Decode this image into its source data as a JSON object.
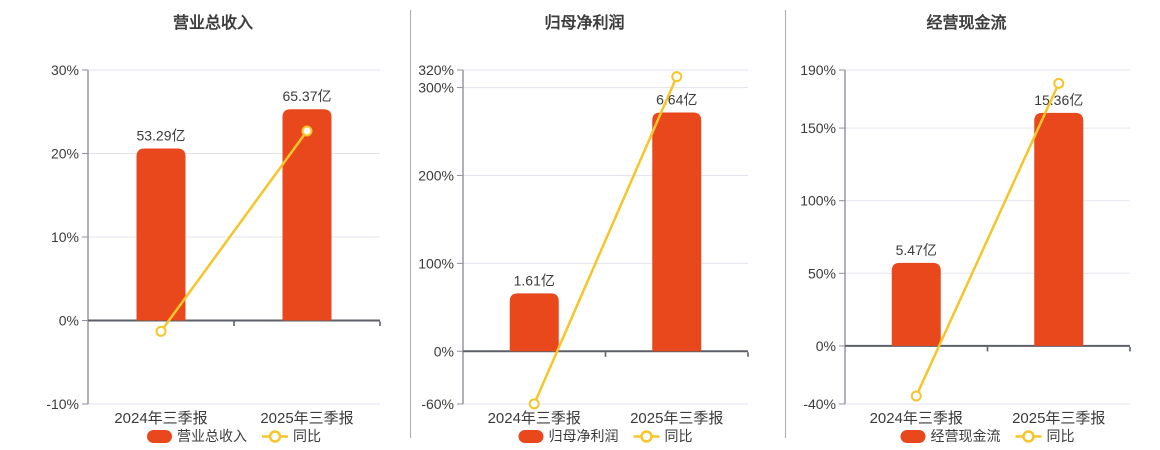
{
  "page": {
    "background": "#ffffff"
  },
  "colors": {
    "bar": "#e8481c",
    "line": "#f5c52b",
    "marker_fill": "#ffffff",
    "grid": "#e2e5ef",
    "zero_axis": "#5d5f68",
    "axis": "#90919a",
    "text": "#3b3b3b",
    "title": "#3d3d3d",
    "divider": "#aaabb2"
  },
  "chart_data": [
    {
      "type": "combo-bar-line",
      "title": "营业总收入",
      "categories": [
        "2024年三季报",
        "2025年三季报"
      ],
      "series": [
        {
          "name": "营业总收入",
          "type": "bar",
          "unit": "亿",
          "values": [
            53.29,
            65.37
          ],
          "labels": [
            "53.29亿",
            "65.37亿"
          ]
        },
        {
          "name": "同比",
          "type": "line",
          "unit": "%",
          "values": [
            -1.3,
            22.7
          ]
        }
      ],
      "y_axis": {
        "unit": "%",
        "min": -10,
        "max": 30,
        "ticks": [
          30,
          20,
          10,
          0,
          -10
        ],
        "tick_labels": [
          "30%",
          "20%",
          "10%",
          "0%",
          "-10%"
        ]
      },
      "bar_tops_on_pct_axis": [
        20.6,
        25.3
      ],
      "legend": [
        "营业总收入",
        "同比"
      ],
      "grid_on": true,
      "legend_position": "bottom"
    },
    {
      "type": "combo-bar-line",
      "title": "归母净利润",
      "categories": [
        "2024年三季报",
        "2025年三季报"
      ],
      "series": [
        {
          "name": "归母净利润",
          "type": "bar",
          "unit": "亿",
          "values": [
            1.61,
            6.64
          ],
          "labels": [
            "1.61亿",
            "6.64亿"
          ]
        },
        {
          "name": "同比",
          "type": "line",
          "unit": "%",
          "values": [
            -59.8,
            312.4
          ]
        }
      ],
      "y_axis": {
        "unit": "%",
        "min": -60,
        "max": 320,
        "ticks": [
          320,
          300,
          200,
          100,
          0,
          -60
        ],
        "tick_labels": [
          "320%",
          "300%",
          "200%",
          "100%",
          "0%",
          "-60%"
        ]
      },
      "bar_tops_on_pct_axis": [
        65.9,
        271.6
      ],
      "legend": [
        "归母净利润",
        "同比"
      ],
      "grid_on": true,
      "legend_position": "bottom"
    },
    {
      "type": "combo-bar-line",
      "title": "经营现金流",
      "categories": [
        "2024年三季报",
        "2025年三季报"
      ],
      "series": [
        {
          "name": "经营现金流",
          "type": "bar",
          "unit": "亿",
          "values": [
            5.47,
            15.36
          ],
          "labels": [
            "5.47亿",
            "15.36亿"
          ]
        },
        {
          "name": "同比",
          "type": "line",
          "unit": "%",
          "values": [
            -34.5,
            180.8
          ]
        }
      ],
      "y_axis": {
        "unit": "%",
        "min": -40,
        "max": 190,
        "ticks": [
          190,
          150,
          100,
          50,
          0,
          -40
        ],
        "tick_labels": [
          "190%",
          "150%",
          "100%",
          "50%",
          "0%",
          "-40%"
        ]
      },
      "bar_tops_on_pct_axis": [
        57.2,
        160.5
      ],
      "legend": [
        "经营现金流",
        "同比"
      ],
      "grid_on": true,
      "legend_position": "bottom"
    }
  ]
}
